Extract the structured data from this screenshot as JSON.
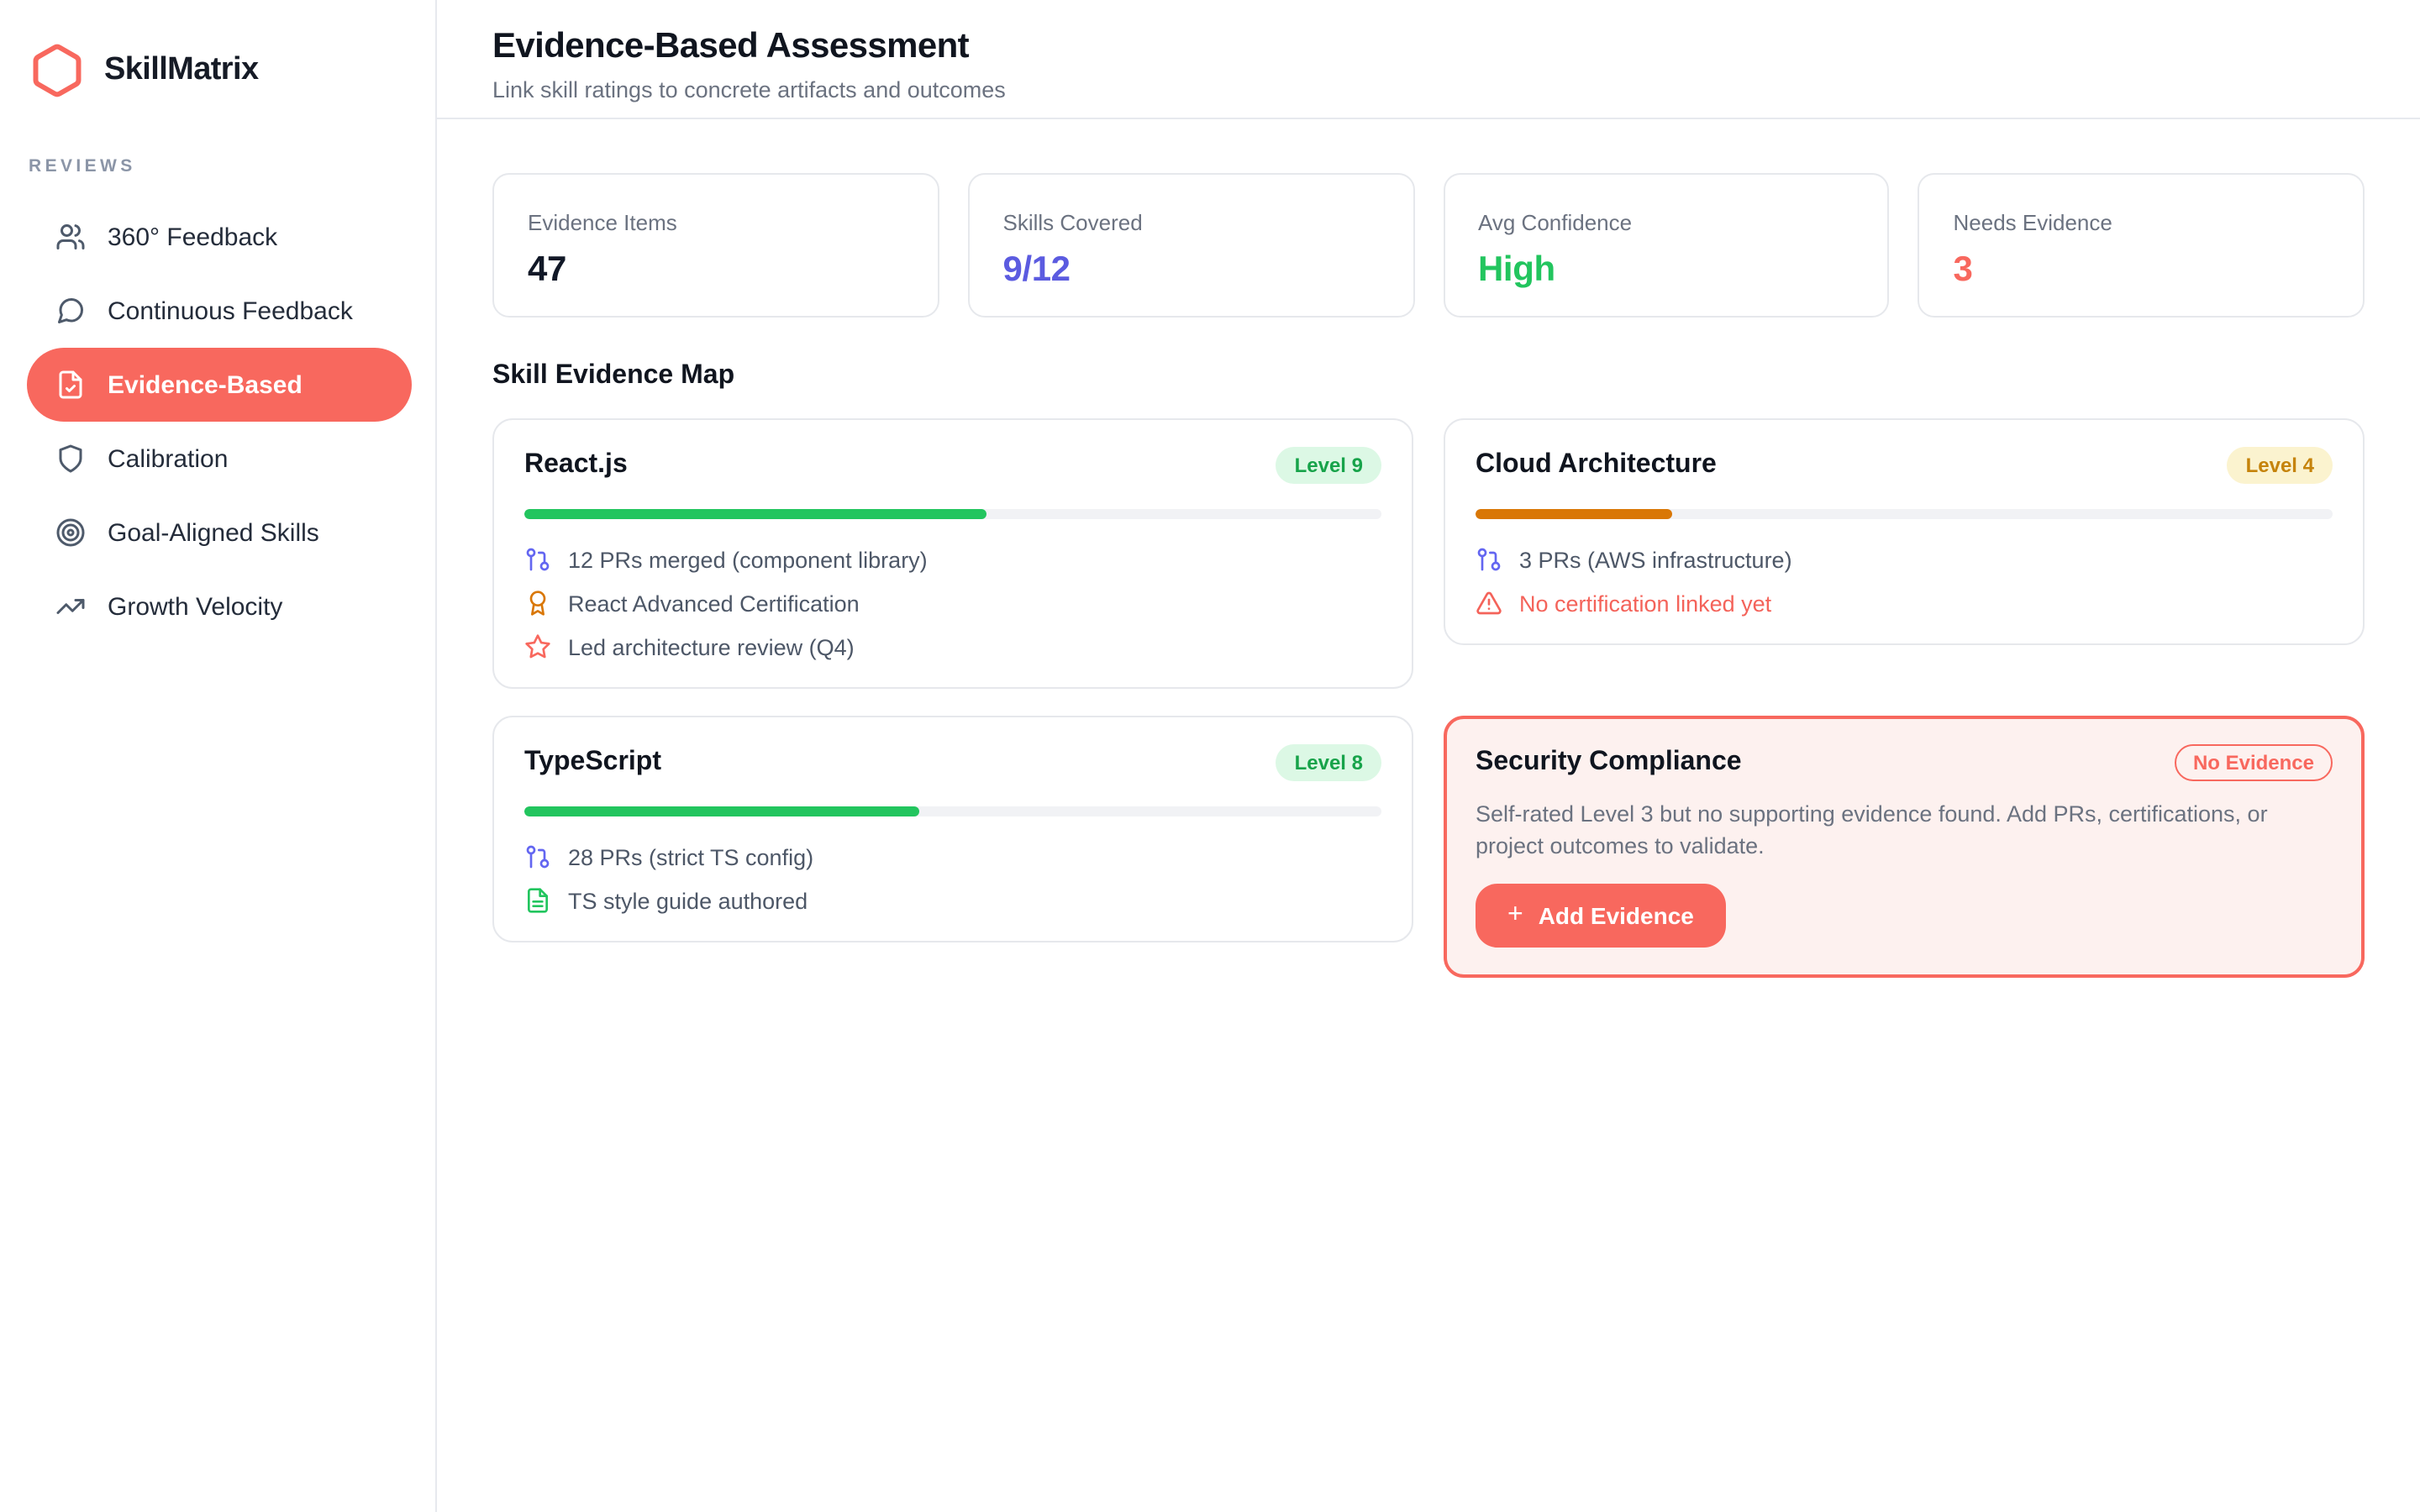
{
  "brand": {
    "name": "SkillMatrix",
    "accent_color": "#f8685e"
  },
  "sidebar": {
    "section_label": "REVIEWS",
    "items": [
      {
        "label": "360° Feedback",
        "icon": "users-icon",
        "active": false
      },
      {
        "label": "Continuous Feedback",
        "icon": "message-circle-icon",
        "active": false
      },
      {
        "label": "Evidence-Based",
        "icon": "file-check-icon",
        "active": true
      },
      {
        "label": "Calibration",
        "icon": "shield-icon",
        "active": false
      },
      {
        "label": "Goal-Aligned Skills",
        "icon": "target-icon",
        "active": false
      },
      {
        "label": "Growth Velocity",
        "icon": "trending-up-icon",
        "active": false
      }
    ]
  },
  "header": {
    "title": "Evidence-Based Assessment",
    "subtitle": "Link skill ratings to concrete artifacts and outcomes"
  },
  "stats": [
    {
      "label": "Evidence Items",
      "value": "47",
      "color": "#111827"
    },
    {
      "label": "Skills Covered",
      "value": "9/12",
      "color": "#5b5be0"
    },
    {
      "label": "Avg Confidence",
      "value": "High",
      "color": "#22c55e"
    },
    {
      "label": "Needs Evidence",
      "value": "3",
      "color": "#f8685e"
    }
  ],
  "section_title": "Skill Evidence Map",
  "skills": [
    {
      "name": "React.js",
      "badge": {
        "label": "Level 9",
        "style": "green"
      },
      "progress": {
        "percent": 54,
        "color": "#22c55e"
      },
      "evidence": [
        {
          "icon": "git-pull-request-icon",
          "icon_color": "#6366f1",
          "text": "12 PRs merged (component library)",
          "alert": false
        },
        {
          "icon": "award-icon",
          "icon_color": "#d97706",
          "text": "React Advanced Certification",
          "alert": false
        },
        {
          "icon": "star-icon",
          "icon_color": "#f8685e",
          "text": "Led architecture review (Q4)",
          "alert": false
        }
      ]
    },
    {
      "name": "Cloud Architecture",
      "badge": {
        "label": "Level 4",
        "style": "yellow"
      },
      "progress": {
        "percent": 23,
        "color": "#d97706"
      },
      "evidence": [
        {
          "icon": "git-pull-request-icon",
          "icon_color": "#6366f1",
          "text": "3 PRs (AWS infrastructure)",
          "alert": false
        },
        {
          "icon": "alert-triangle-icon",
          "icon_color": "#f4635a",
          "text": "No certification linked yet",
          "alert": true
        }
      ]
    },
    {
      "name": "TypeScript",
      "badge": {
        "label": "Level 8",
        "style": "green"
      },
      "progress": {
        "percent": 46,
        "color": "#22c55e"
      },
      "evidence": [
        {
          "icon": "git-pull-request-icon",
          "icon_color": "#6366f1",
          "text": "28 PRs (strict TS config)",
          "alert": false
        },
        {
          "icon": "file-text-icon",
          "icon_color": "#22c55e",
          "text": "TS style guide authored",
          "alert": false
        }
      ]
    },
    {
      "name": "Security Compliance",
      "badge": {
        "label": "No Evidence",
        "style": "outline-red"
      },
      "description": "Self-rated Level 3 but no supporting evidence found. Add PRs, certifications, or project outcomes to validate.",
      "button": {
        "label": "Add Evidence",
        "icon": "plus-icon"
      }
    }
  ]
}
